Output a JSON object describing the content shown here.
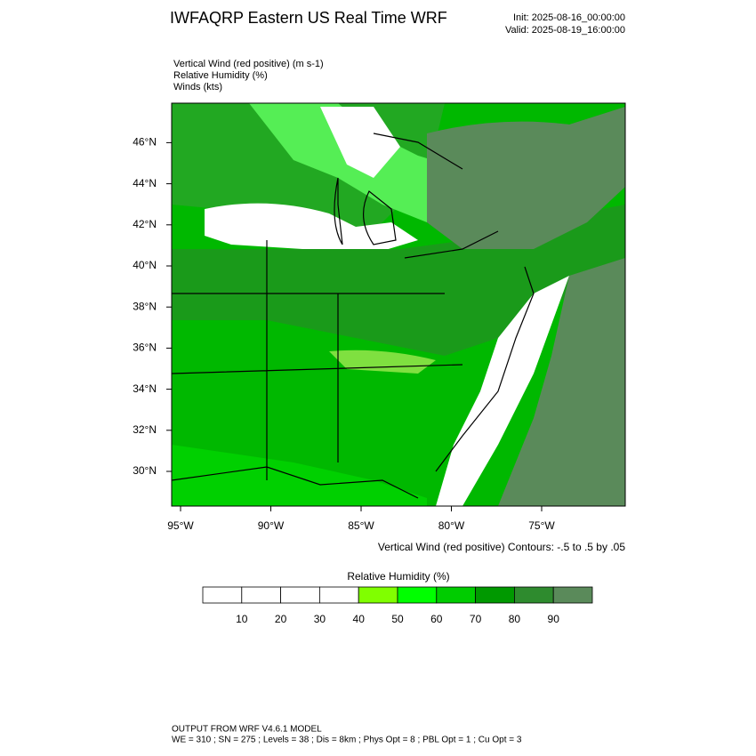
{
  "header": {
    "title": "IWFAQRP Eastern US Real Time WRF",
    "init": "Init: 2025-08-16_00:00:00",
    "valid": "Valid: 2025-08-19_16:00:00"
  },
  "fields": [
    "Vertical Wind (red positive)   (m s-1)",
    "Relative Humidity   (%)",
    "Winds   (kts)"
  ],
  "map": {
    "lon_ticks": [
      {
        "value": -95,
        "label": "95°W"
      },
      {
        "value": -90,
        "label": "90°W"
      },
      {
        "value": -85,
        "label": "85°W"
      },
      {
        "value": -80,
        "label": "80°W"
      },
      {
        "value": -75,
        "label": "75°W"
      }
    ],
    "lat_ticks": [
      {
        "value": 46,
        "label": "46°N"
      },
      {
        "value": 44,
        "label": "44°N"
      },
      {
        "value": 42,
        "label": "42°N"
      },
      {
        "value": 40,
        "label": "40°N"
      },
      {
        "value": 38,
        "label": "38°N"
      },
      {
        "value": 36,
        "label": "36°N"
      },
      {
        "value": 34,
        "label": "34°N"
      },
      {
        "value": 32,
        "label": "32°N"
      },
      {
        "value": 30,
        "label": "30°N"
      }
    ],
    "contour_note": "Vertical Wind (red positive) Contours: -.5 to .5 by .05"
  },
  "colorbar": {
    "title": "Relative Humidity  (%)",
    "levels": [
      10,
      20,
      30,
      40,
      50,
      60,
      70,
      80,
      90
    ],
    "colors": [
      "#ffffff",
      "#ffffff",
      "#ffffff",
      "#ffffff",
      "#80ff00",
      "#00ff00",
      "#00cc00",
      "#009900",
      "#2e8b2e",
      "#5a8a5a"
    ]
  },
  "footer": {
    "line1": "OUTPUT FROM WRF V4.6.1 MODEL",
    "line2": "WE = 310 ; SN = 275 ; Levels = 38 ; Dis = 8km ; Phys Opt = 8 ; PBL Opt = 1 ; Cu Opt = 3"
  }
}
